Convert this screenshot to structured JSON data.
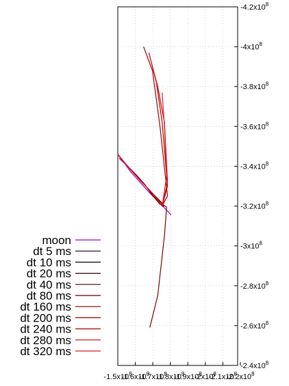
{
  "chart_data": {
    "type": "line",
    "title": "",
    "xlabel": "",
    "ylabel": "",
    "xlim": [
      -150000000.0,
      120000000.0
    ],
    "ylim": [
      -420000000.0,
      -240000000.0
    ],
    "x_tick_labels": [
      "-1.5x10^8",
      "-1.6x10^8",
      "-1.7x10^8",
      "-1.8x10^8",
      "-1.9x10^8",
      "-2x10^8",
      "-2.1x10^8",
      "-2.2x10^8"
    ],
    "y_ticks": [
      {
        "value": -420000000.0,
        "label": "-4.2x10^8"
      },
      {
        "value": -400000000.0,
        "label": "-4x10^8"
      },
      {
        "value": -380000000.0,
        "label": "-3.8x10^8"
      },
      {
        "value": -360000000.0,
        "label": "-3.6x10^8"
      },
      {
        "value": -340000000.0,
        "label": "-3.4x10^8"
      },
      {
        "value": -320000000.0,
        "label": "-3.2x10^8"
      },
      {
        "value": -300000000.0,
        "label": "-3x10^8"
      },
      {
        "value": -280000000.0,
        "label": "-2.8x10^8"
      },
      {
        "value": -260000000.0,
        "label": "-2.6x10^8"
      },
      {
        "value": -240000000.0,
        "label": "-2.4x10^8"
      }
    ],
    "grid": true,
    "legend_position": "left",
    "series": [
      {
        "name": "moon",
        "color": "#9400d3",
        "points": [
          [
            -147000000.0,
            -344000000.0
          ],
          [
            -135000000.0,
            -341500000.0
          ],
          [
            -120000000.0,
            -337000000.0
          ],
          [
            -100000000.0,
            -332000000.0
          ],
          [
            -80000000.0,
            -327000000.0
          ],
          [
            -60000000.0,
            -322500000.0
          ],
          [
            -40000000.0,
            -318000000.0
          ],
          [
            -30000000.0,
            -315500000.0
          ]
        ]
      },
      {
        "name": "dt 5 ms",
        "color": "#000000",
        "points": [
          [
            -150000000.0,
            -346000000.0
          ],
          [
            -140000000.0,
            -343000000.0
          ],
          [
            -130000000.0,
            -340500000.0
          ],
          [
            -110000000.0,
            -336000000.0
          ],
          [
            -90000000.0,
            -331000000.0
          ],
          [
            -70000000.0,
            -325000000.0
          ],
          [
            -55000000.0,
            -321000000.0
          ],
          [
            -45000000.0,
            -320000000.0
          ]
        ]
      },
      {
        "name": "dt 10 ms",
        "color": "#120000",
        "points": [
          [
            -150000000.0,
            -346000000.0
          ],
          [
            -140000000.0,
            -343000000.0
          ],
          [
            -130000000.0,
            -340500000.0
          ],
          [
            -110000000.0,
            -336000000.0
          ],
          [
            -90000000.0,
            -331000000.0
          ],
          [
            -70000000.0,
            -325000000.0
          ],
          [
            -55000000.0,
            -321000000.0
          ],
          [
            -45000000.0,
            -320000000.0
          ]
        ]
      },
      {
        "name": "dt 20 ms",
        "color": "#250000",
        "points": [
          [
            -150000000.0,
            -346000000.0
          ],
          [
            -140000000.0,
            -343000000.0
          ],
          [
            -130000000.0,
            -340500000.0
          ],
          [
            -110000000.0,
            -336000000.0
          ],
          [
            -90000000.0,
            -331000000.0
          ],
          [
            -70000000.0,
            -325000000.0
          ],
          [
            -55000000.0,
            -321000000.0
          ],
          [
            -45000000.0,
            -320000000.0
          ]
        ]
      },
      {
        "name": "dt 40 ms",
        "color": "#400000",
        "points": [
          [
            -150000000.0,
            -346000000.0
          ],
          [
            -140000000.0,
            -343000000.0
          ],
          [
            -130000000.0,
            -340500000.0
          ],
          [
            -110000000.0,
            -336000000.0
          ],
          [
            -90000000.0,
            -331000000.0
          ],
          [
            -70000000.0,
            -325000000.0
          ],
          [
            -55000000.0,
            -321000000.0
          ],
          [
            -45000000.0,
            -320000000.0
          ]
        ]
      },
      {
        "name": "dt 80 ms",
        "color": "#5c0000",
        "points": [
          [
            -150000000.0,
            -346000000.0
          ],
          [
            -140000000.0,
            -343000000.0
          ],
          [
            -130000000.0,
            -340500000.0
          ],
          [
            -110000000.0,
            -336000000.0
          ],
          [
            -90000000.0,
            -331000000.0
          ],
          [
            -70000000.0,
            -325000000.0
          ],
          [
            -55000000.0,
            -321000000.0
          ],
          [
            -45000000.0,
            -320000000.0
          ]
        ]
      },
      {
        "name": "dt 160 ms",
        "color": "#7a0000",
        "points": [
          [
            -150000000.0,
            -346000000.0
          ],
          [
            -130000000.0,
            -340500000.0
          ],
          [
            -100000000.0,
            -333000000.0
          ],
          [
            -70000000.0,
            -326000000.0
          ],
          [
            -50000000.0,
            -321000000.0
          ],
          [
            -40000000.0,
            -319500000.0
          ],
          [
            -45000000.0,
            -305000000.0
          ],
          [
            -60000000.0,
            -275000000.0
          ],
          [
            -78000000.0,
            -259000000.0
          ]
        ]
      },
      {
        "name": "dt 200 ms",
        "color": "#960000",
        "points": [
          [
            -150000000.0,
            -346000000.0
          ],
          [
            -130000000.0,
            -340500000.0
          ],
          [
            -100000000.0,
            -333000000.0
          ],
          [
            -70000000.0,
            -326000000.0
          ],
          [
            -48000000.0,
            -321000000.0
          ],
          [
            -38000000.0,
            -325000000.0
          ],
          [
            -55000000.0,
            -360000000.0
          ],
          [
            -72000000.0,
            -388000000.0
          ],
          [
            -92000000.0,
            -400000000.0
          ]
        ]
      },
      {
        "name": "dt 240 ms",
        "color": "#b00000",
        "points": [
          [
            -150000000.0,
            -346000000.0
          ],
          [
            -130000000.0,
            -340500000.0
          ],
          [
            -100000000.0,
            -333000000.0
          ],
          [
            -70000000.0,
            -326000000.0
          ],
          [
            -50000000.0,
            -320000000.0
          ],
          [
            -38000000.0,
            -330000000.0
          ],
          [
            -50000000.0,
            -362000000.0
          ],
          [
            -63000000.0,
            -382000000.0
          ],
          [
            -80000000.0,
            -397000000.0
          ]
        ]
      },
      {
        "name": "dt 280 ms",
        "color": "#cc0000",
        "points": [
          [
            -150000000.0,
            -346000000.0
          ],
          [
            -130000000.0,
            -340500000.0
          ],
          [
            -100000000.0,
            -333000000.0
          ],
          [
            -70000000.0,
            -326000000.0
          ],
          [
            -50000000.0,
            -320000000.0
          ],
          [
            -38000000.0,
            -332000000.0
          ],
          [
            -45000000.0,
            -362000000.0
          ],
          [
            -60000000.0,
            -380000000.0
          ],
          [
            -72000000.0,
            -390000000.0
          ]
        ]
      },
      {
        "name": "dt 320 ms",
        "color": "#e41a1c",
        "points": [
          [
            -150000000.0,
            -346000000.0
          ],
          [
            -130000000.0,
            -340500000.0
          ],
          [
            -100000000.0,
            -333000000.0
          ],
          [
            -70000000.0,
            -326000000.0
          ],
          [
            -50000000.0,
            -320000000.0
          ],
          [
            -40000000.0,
            -335000000.0
          ],
          [
            -45000000.0,
            -360000000.0
          ],
          [
            -48000000.0,
            -370000000.0
          ],
          [
            -50000000.0,
            -377000000.0
          ]
        ]
      }
    ]
  }
}
